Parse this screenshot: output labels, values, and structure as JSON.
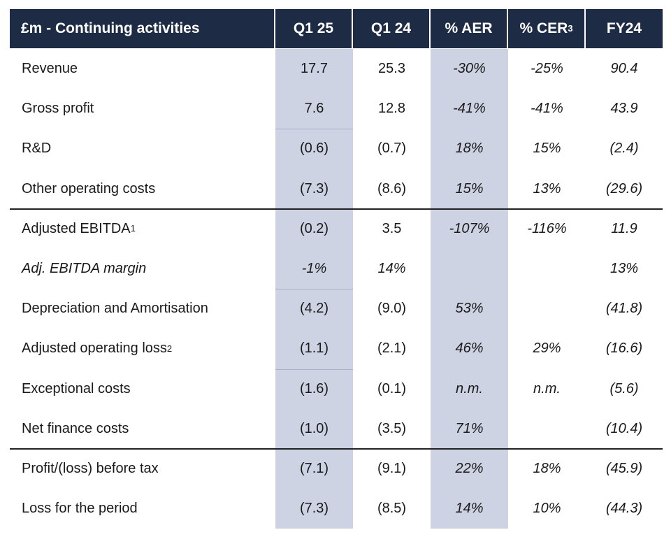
{
  "table": {
    "columns": [
      {
        "text": "£m  - Continuing activities"
      },
      {
        "text": "Q1 25"
      },
      {
        "text": "Q1 24"
      },
      {
        "text": "% AER"
      },
      {
        "text": "% CER",
        "note": "3"
      },
      {
        "text": "FY24"
      }
    ],
    "rows": [
      {
        "label": "Revenue",
        "cells": [
          "17.7",
          "25.3",
          "-30%",
          "-25%",
          "90.4"
        ]
      },
      {
        "label": "Gross profit",
        "cells": [
          "7.6",
          "12.8",
          "-41%",
          "-41%",
          "43.9"
        ]
      },
      {
        "label": "R&D",
        "cells": [
          "(0.6)",
          "(0.7)",
          "18%",
          "15%",
          "(2.4)"
        ]
      },
      {
        "label": "Other operating costs",
        "cells": [
          "(7.3)",
          "(8.6)",
          "15%",
          "13%",
          "(29.6)"
        ]
      },
      {
        "label": "Adjusted EBITDA",
        "note": "1",
        "cells": [
          "(0.2)",
          "3.5",
          "-107%",
          "-116%",
          "11.9"
        ]
      },
      {
        "label": "Adj. EBITDA margin",
        "italic": true,
        "cells": [
          "-1%",
          "14%",
          null,
          null,
          "13%"
        ]
      },
      {
        "label": "Depreciation and Amortisation",
        "cells": [
          "(4.2)",
          "(9.0)",
          "53%",
          null,
          "(41.8)"
        ]
      },
      {
        "label": "Adjusted operating loss",
        "note": "2",
        "cells": [
          "(1.1)",
          "(2.1)",
          "46%",
          "29%",
          "(16.6)"
        ]
      },
      {
        "label": "Exceptional costs",
        "cells": [
          "(1.6)",
          "(0.1)",
          "n.m.",
          "n.m.",
          "(5.6)"
        ]
      },
      {
        "label": "Net finance costs",
        "cells": [
          "(1.0)",
          "(3.5)",
          "71%",
          null,
          "(10.4)"
        ]
      },
      {
        "label": "Profit/(loss) before tax",
        "cells": [
          "(7.1)",
          "(9.1)",
          "22%",
          "18%",
          "(45.9)"
        ]
      },
      {
        "label": "Loss for the period",
        "cells": [
          "(7.3)",
          "(8.5)",
          "14%",
          "10%",
          "(44.3)"
        ]
      }
    ]
  }
}
